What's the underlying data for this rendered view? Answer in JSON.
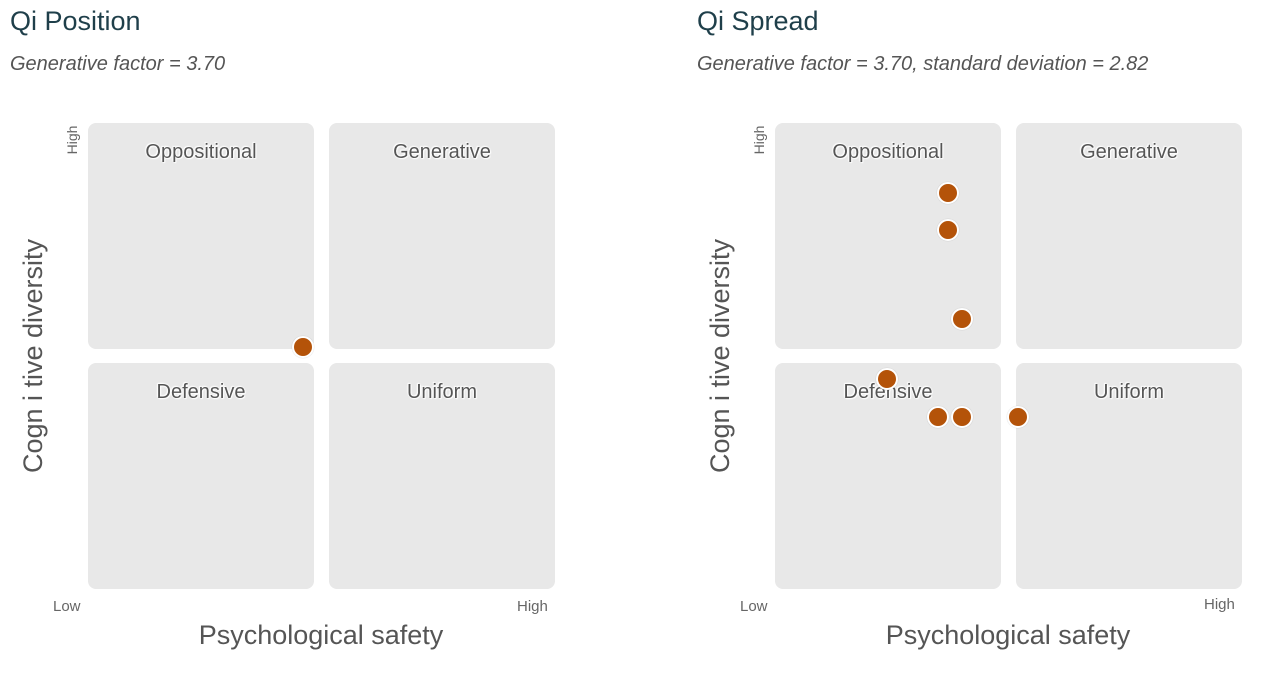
{
  "theme": {
    "title_color": "#1f3f4a",
    "quadrant_fill": "#e8e8e8",
    "point_color": "#b45309",
    "text_gray": "#555555"
  },
  "charts": [
    {
      "title": "Qi Position",
      "subtitle": "Generative factor =  3.70",
      "quadrants": {
        "top_left": "Oppositional",
        "top_right": "Generative",
        "bottom_left": "Defensive",
        "bottom_right": "Uniform"
      },
      "x_low": "Low",
      "x_high": "High",
      "y_high": "High",
      "x_title": "Psychological safety",
      "y_title": "Cogn i tive diversity"
    },
    {
      "title": "Qi Spread",
      "subtitle": "Generative factor =  3.70, standard deviation = 2.82",
      "quadrants": {
        "top_left": "Oppositional",
        "top_right": "Generative",
        "bottom_left": "Defensive",
        "bottom_right": "Uniform"
      },
      "x_low": "Low",
      "x_high": "High",
      "y_high": "High",
      "x_title": "Psychological safety",
      "y_title": "Cogn i tive diversity"
    }
  ],
  "chart_data": [
    {
      "type": "scatter",
      "title": "Qi Position",
      "subtitle": "Generative factor =  3.70",
      "xlabel": "Psychological safety",
      "ylabel": "Cogn i tive diversity",
      "xlim": [
        0,
        10
      ],
      "ylim": [
        0,
        10
      ],
      "grid": false,
      "quadrants": [
        "Oppositional",
        "Generative",
        "Defensive",
        "Uniform"
      ],
      "series": [
        {
          "x": [
            4.6
          ],
          "y": [
            5.2
          ]
        }
      ]
    },
    {
      "type": "scatter",
      "title": "Qi Spread",
      "subtitle": "Generative factor =  3.70, standard deviation = 2.82",
      "xlabel": "Psychological safety",
      "ylabel": "Cogn i tive diversity",
      "xlim": [
        0,
        10
      ],
      "ylim": [
        0,
        10
      ],
      "grid": false,
      "quadrants": [
        "Oppositional",
        "Generative",
        "Defensive",
        "Uniform"
      ],
      "series": [
        {
          "x": [
            3.7,
            3.7,
            4.0,
            2.4,
            3.5,
            4.0,
            5.2
          ],
          "y": [
            8.5,
            7.7,
            5.8,
            4.5,
            3.7,
            3.7,
            3.7
          ]
        }
      ]
    }
  ]
}
